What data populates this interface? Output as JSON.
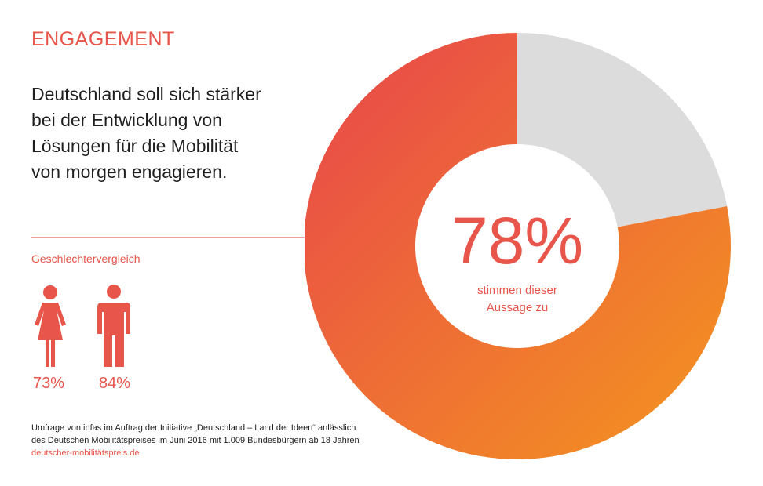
{
  "section_title": "ENGAGEMENT",
  "statement_lines": [
    "Deutschland soll sich stärker",
    "bei der Entwicklung von",
    "Lösungen für die Mobilität",
    "von morgen engagieren."
  ],
  "gender_comparison": {
    "title": "Geschlechtervergleich",
    "female": {
      "icon": "female-person-icon",
      "value": "73%"
    },
    "male": {
      "icon": "male-person-icon",
      "value": "84%"
    }
  },
  "chart_data": {
    "type": "pie",
    "values": [
      78,
      22
    ],
    "center_value": "78%",
    "center_caption_lines": [
      "stimmen dieser",
      "Aussage zu"
    ],
    "colors": {
      "agree_gradient_start": "#e8454c",
      "agree_gradient_end": "#f4961e",
      "rest": "#dcdcdc"
    }
  },
  "source": {
    "lines": [
      "Umfrage von infas im Auftrag der Initiative „Deutschland – Land der Ideen“ anlässlich",
      "des Deutschen Mobilitätspreises im Juni 2016 mit 1.009 Bundesbürgern ab 18 Jahren"
    ],
    "link": "deutscher-mobilitätspreis.de"
  },
  "colors": {
    "accent": "#e8554a",
    "text": "#1f1f1f"
  }
}
